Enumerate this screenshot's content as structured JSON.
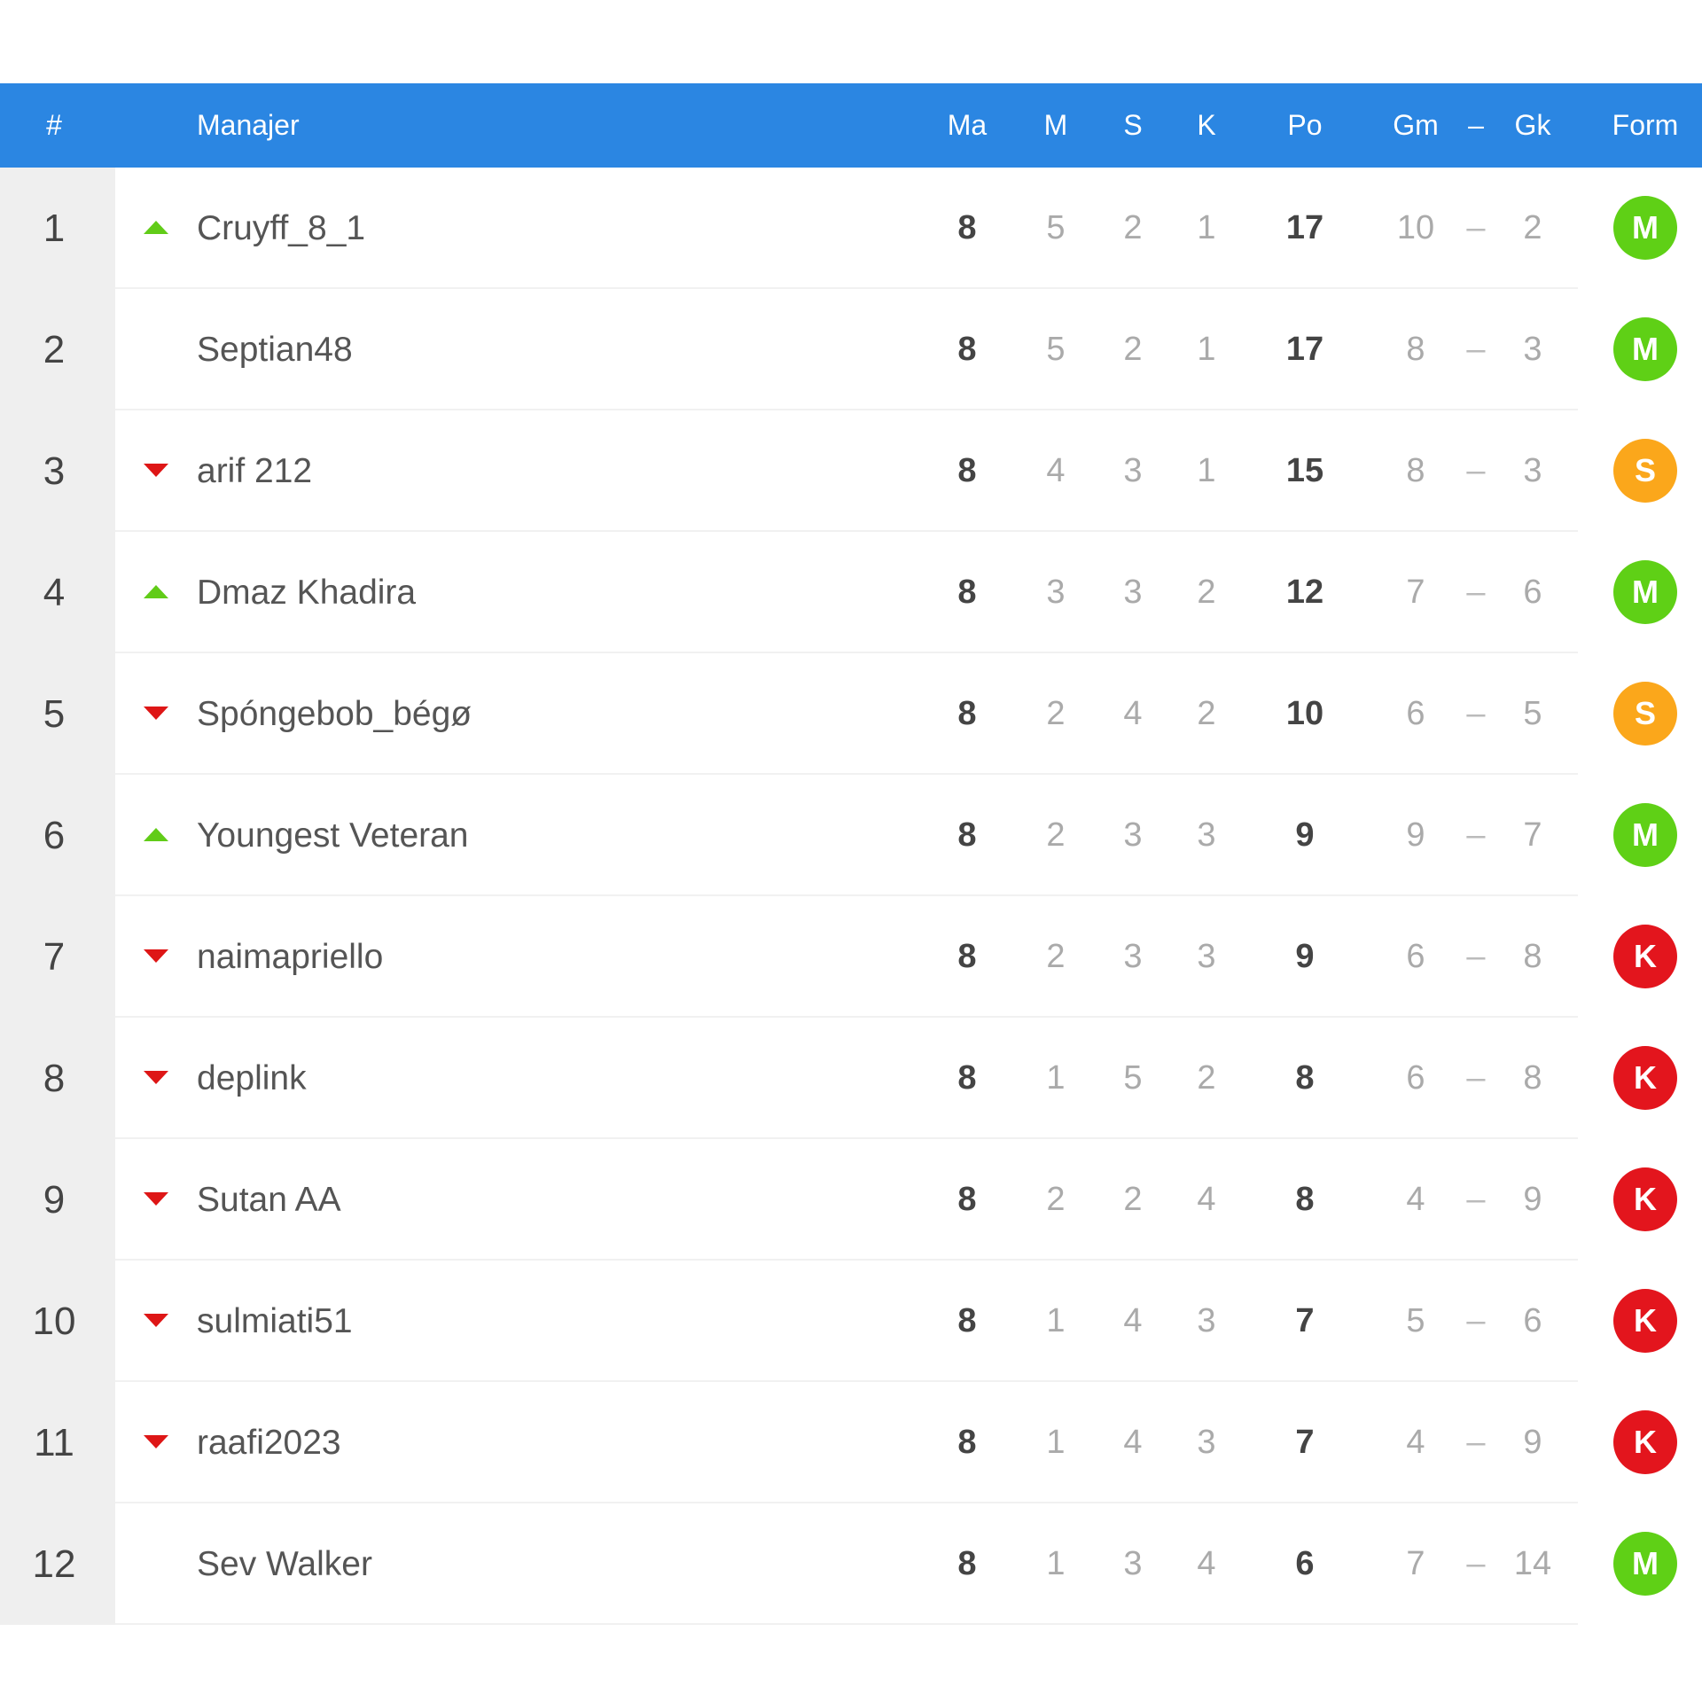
{
  "header": {
    "rank": "#",
    "manager": "Manajer",
    "played": "Ma",
    "won": "M",
    "drawn": "S",
    "lost": "K",
    "points": "Po",
    "goals_for": "Gm",
    "dash": "–",
    "goals_against": "Gk",
    "form": "Form"
  },
  "colors": {
    "header_bg": "#2b86e2",
    "up": "#61cc18",
    "down": "#de1616",
    "M": "#5fd016",
    "S": "#fba71b",
    "K": "#e3151d"
  },
  "rows": [
    {
      "rank": "1",
      "trend": "up",
      "name": "Cruyff_8_1",
      "played": "8",
      "won": "5",
      "drawn": "2",
      "lost": "1",
      "points": "17",
      "gf": "10",
      "dash": "–",
      "ga": "2",
      "form": "M"
    },
    {
      "rank": "2",
      "trend": "none",
      "name": "Septian48",
      "played": "8",
      "won": "5",
      "drawn": "2",
      "lost": "1",
      "points": "17",
      "gf": "8",
      "dash": "–",
      "ga": "3",
      "form": "M"
    },
    {
      "rank": "3",
      "trend": "down",
      "name": "arif 212",
      "played": "8",
      "won": "4",
      "drawn": "3",
      "lost": "1",
      "points": "15",
      "gf": "8",
      "dash": "–",
      "ga": "3",
      "form": "S"
    },
    {
      "rank": "4",
      "trend": "up",
      "name": "Dmaz Khadira",
      "played": "8",
      "won": "3",
      "drawn": "3",
      "lost": "2",
      "points": "12",
      "gf": "7",
      "dash": "–",
      "ga": "6",
      "form": "M"
    },
    {
      "rank": "5",
      "trend": "down",
      "name": "Spóngebob_bégø",
      "played": "8",
      "won": "2",
      "drawn": "4",
      "lost": "2",
      "points": "10",
      "gf": "6",
      "dash": "–",
      "ga": "5",
      "form": "S"
    },
    {
      "rank": "6",
      "trend": "up",
      "name": "Youngest Veteran",
      "played": "8",
      "won": "2",
      "drawn": "3",
      "lost": "3",
      "points": "9",
      "gf": "9",
      "dash": "–",
      "ga": "7",
      "form": "M"
    },
    {
      "rank": "7",
      "trend": "down",
      "name": "naimapriello",
      "played": "8",
      "won": "2",
      "drawn": "3",
      "lost": "3",
      "points": "9",
      "gf": "6",
      "dash": "–",
      "ga": "8",
      "form": "K"
    },
    {
      "rank": "8",
      "trend": "down",
      "name": "deplink",
      "played": "8",
      "won": "1",
      "drawn": "5",
      "lost": "2",
      "points": "8",
      "gf": "6",
      "dash": "–",
      "ga": "8",
      "form": "K"
    },
    {
      "rank": "9",
      "trend": "down",
      "name": "Sutan AA",
      "played": "8",
      "won": "2",
      "drawn": "2",
      "lost": "4",
      "points": "8",
      "gf": "4",
      "dash": "–",
      "ga": "9",
      "form": "K"
    },
    {
      "rank": "10",
      "trend": "down",
      "name": "sulmiati51",
      "played": "8",
      "won": "1",
      "drawn": "4",
      "lost": "3",
      "points": "7",
      "gf": "5",
      "dash": "–",
      "ga": "6",
      "form": "K"
    },
    {
      "rank": "11",
      "trend": "down",
      "name": "raafi2023",
      "played": "8",
      "won": "1",
      "drawn": "4",
      "lost": "3",
      "points": "7",
      "gf": "4",
      "dash": "–",
      "ga": "9",
      "form": "K"
    },
    {
      "rank": "12",
      "trend": "none",
      "name": "Sev Walker",
      "played": "8",
      "won": "1",
      "drawn": "3",
      "lost": "4",
      "points": "6",
      "gf": "7",
      "dash": "–",
      "ga": "14",
      "form": "M"
    }
  ]
}
